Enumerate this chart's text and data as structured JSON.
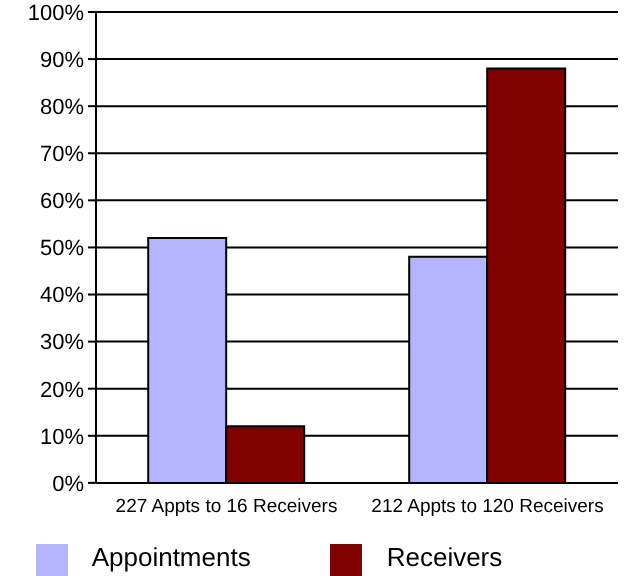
{
  "chart_data": {
    "type": "bar",
    "categories": [
      "227 Appts to 16 Receivers",
      "212 Appts to 120 Receivers"
    ],
    "series": [
      {
        "name": "Appointments",
        "color": "#b4b4ff",
        "values": [
          52,
          48
        ]
      },
      {
        "name": "Receivers",
        "color": "#800000",
        "values": [
          12,
          88
        ]
      }
    ],
    "ylim": [
      0,
      100
    ],
    "yticks": [
      {
        "value": 0,
        "label": "0%"
      },
      {
        "value": 10,
        "label": "10%"
      },
      {
        "value": 20,
        "label": "20%"
      },
      {
        "value": 30,
        "label": "30%"
      },
      {
        "value": 40,
        "label": "40%"
      },
      {
        "value": 50,
        "label": "50%"
      },
      {
        "value": 60,
        "label": "60%"
      },
      {
        "value": 70,
        "label": "70%"
      },
      {
        "value": 80,
        "label": "80%"
      },
      {
        "value": 90,
        "label": "90%"
      },
      {
        "value": 100,
        "label": "100%"
      }
    ],
    "grid": "y",
    "legend": "bottom"
  }
}
